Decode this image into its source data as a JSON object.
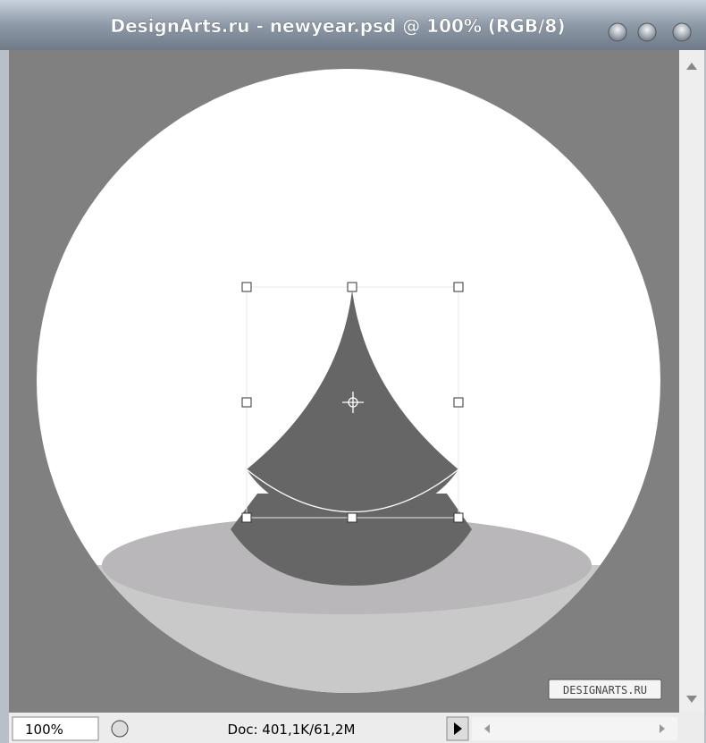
{
  "window": {
    "title": "DesignArts.ru - newyear.psd @ 100% (RGB/8)"
  },
  "status_bar": {
    "zoom": "100%",
    "doc_info": "Doc: 401,1K/61,2M"
  },
  "canvas": {
    "watermark": "DESIGNARTS.RU"
  }
}
